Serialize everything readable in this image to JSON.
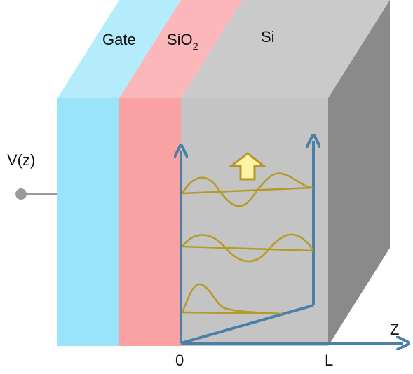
{
  "labels": {
    "gate": "Gate",
    "oxide_main": "SiO",
    "oxide_sub": "2",
    "silicon": "Si",
    "voltage": "V(z)",
    "origin": "0",
    "length": "L",
    "axis_z": "Z"
  },
  "colors": {
    "gate_front": "#99e3fb",
    "gate_top": "#b4ecfc",
    "oxide_front": "#f9a1a3",
    "oxide_top": "#fbb7b9",
    "si_front": "#c4c4c4",
    "si_top": "#cacaca",
    "si_side": "#8a8a8a",
    "axis": "#4a7fa8",
    "wave": "#b59a25",
    "arrow_fill": "#fdf3a6",
    "arrow_stroke": "#b8962a",
    "terminal": "#9a9a9a"
  },
  "icons": {
    "up_arrow": "up-arrow-icon"
  }
}
